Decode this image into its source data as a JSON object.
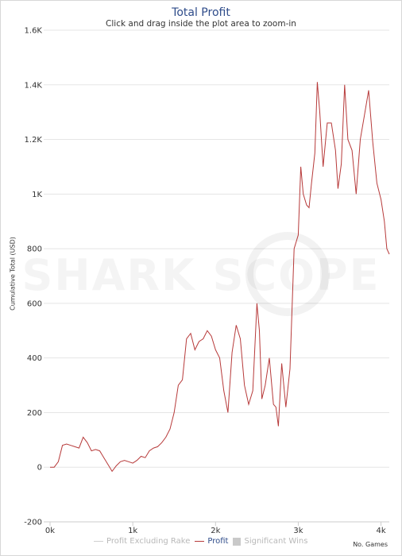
{
  "title": "Total Profit",
  "subtitle": "Click and drag inside the plot area to zoom-in",
  "watermark": "SHARK SCOPE",
  "colors": {
    "profit": "#b73a3a",
    "grid": "#e5e5e5",
    "title": "#2f4c8a"
  },
  "legend": {
    "profit_excl_rake": "Profit Excluding Rake",
    "profit": "Profit",
    "significant_wins": "Significant Wins"
  },
  "chart_data": {
    "type": "line",
    "title": "Total Profit",
    "subtitle": "Click and drag inside the plot area to zoom-in",
    "xlabel": "No. Games",
    "ylabel": "Cumulative Total (USD)",
    "xlim": [
      0,
      4100
    ],
    "ylim": [
      -200,
      1600
    ],
    "x_ticks": [
      "0k",
      "1k",
      "2k",
      "3k",
      "4k"
    ],
    "y_ticks": [
      "-200",
      "0",
      "200",
      "400",
      "600",
      "800",
      "1K",
      "1.2K",
      "1.4K",
      "1.6K"
    ],
    "grid": true,
    "legend_position": "bottom",
    "series": [
      {
        "name": "Profit",
        "x": [
          0,
          50,
          100,
          150,
          200,
          250,
          300,
          350,
          400,
          450,
          500,
          550,
          600,
          650,
          700,
          750,
          800,
          850,
          900,
          950,
          1000,
          1050,
          1100,
          1150,
          1200,
          1250,
          1300,
          1350,
          1400,
          1450,
          1500,
          1550,
          1600,
          1650,
          1700,
          1750,
          1800,
          1850,
          1900,
          1950,
          2000,
          2050,
          2100,
          2150,
          2200,
          2250,
          2300,
          2350,
          2400,
          2450,
          2500,
          2530,
          2560,
          2600,
          2650,
          2700,
          2730,
          2760,
          2800,
          2850,
          2900,
          2950,
          3000,
          3030,
          3060,
          3100,
          3130,
          3160,
          3200,
          3230,
          3260,
          3300,
          3350,
          3400,
          3450,
          3480,
          3520,
          3560,
          3600,
          3650,
          3700,
          3750,
          3800,
          3850,
          3900,
          3950,
          4000,
          4040,
          4070,
          4100
        ],
        "y": [
          0,
          0,
          20,
          80,
          85,
          80,
          75,
          70,
          110,
          90,
          60,
          65,
          60,
          35,
          10,
          -15,
          5,
          20,
          25,
          20,
          15,
          25,
          40,
          35,
          60,
          70,
          75,
          90,
          110,
          140,
          200,
          300,
          320,
          470,
          490,
          430,
          460,
          470,
          500,
          480,
          430,
          400,
          280,
          200,
          420,
          520,
          470,
          300,
          230,
          280,
          600,
          500,
          250,
          300,
          400,
          230,
          220,
          150,
          380,
          220,
          360,
          800,
          850,
          1100,
          1000,
          960,
          950,
          1040,
          1150,
          1410,
          1300,
          1100,
          1260,
          1260,
          1160,
          1020,
          1110,
          1400,
          1200,
          1160,
          1000,
          1200,
          1290,
          1380,
          1190,
          1040,
          980,
          900,
          800,
          780
        ]
      },
      {
        "name": "Profit Excluding Rake",
        "visible": false
      },
      {
        "name": "Significant Wins",
        "visible": false
      }
    ]
  }
}
